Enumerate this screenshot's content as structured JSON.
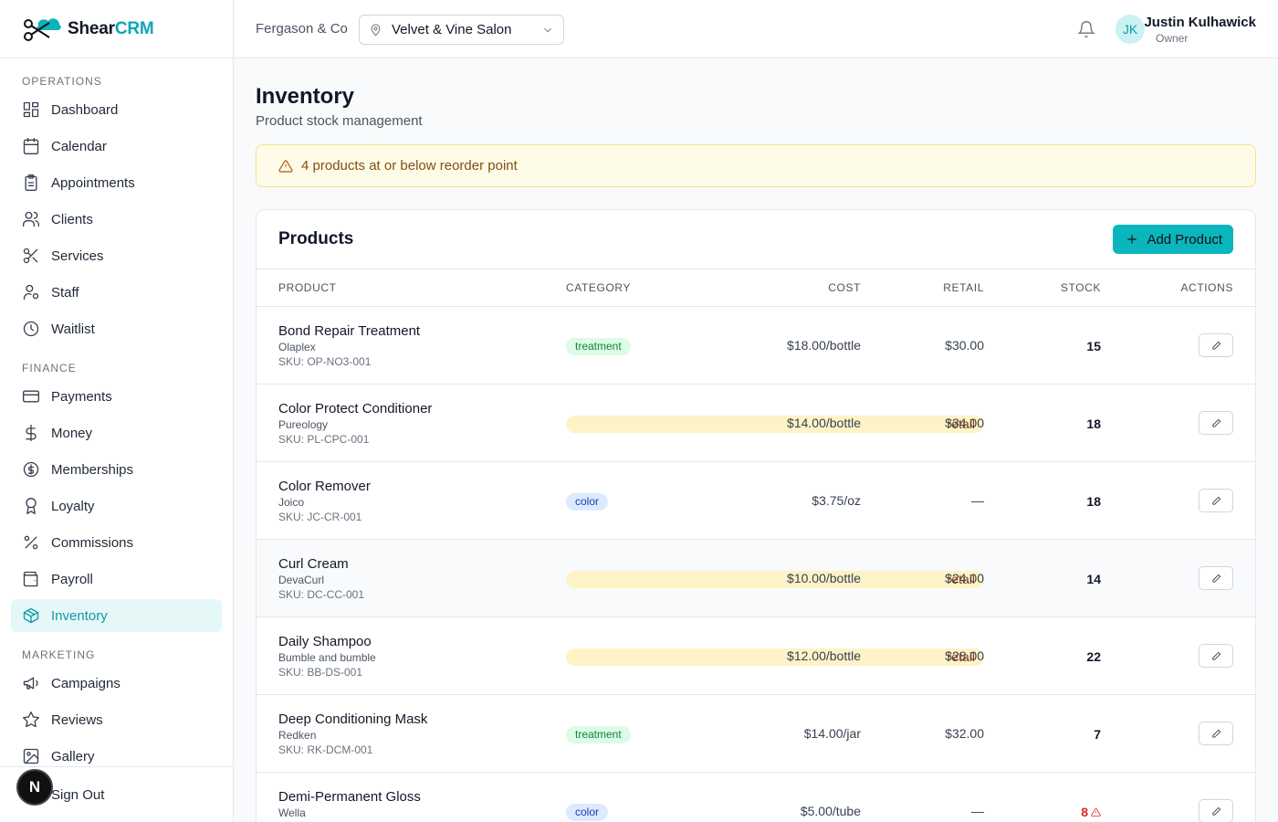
{
  "brand": {
    "name_part1": "Shear",
    "name_part2": "CRM",
    "accent_color": "#0ab5bd"
  },
  "sidebar": {
    "sections": [
      {
        "label": "OPERATIONS",
        "items": [
          {
            "label": "Dashboard",
            "icon": "dashboard-icon"
          },
          {
            "label": "Calendar",
            "icon": "calendar-icon"
          },
          {
            "label": "Appointments",
            "icon": "clipboard-icon"
          },
          {
            "label": "Clients",
            "icon": "users-icon"
          },
          {
            "label": "Services",
            "icon": "scissors-icon"
          },
          {
            "label": "Staff",
            "icon": "user-cog-icon"
          },
          {
            "label": "Waitlist",
            "icon": "clock-icon"
          }
        ]
      },
      {
        "label": "FINANCE",
        "items": [
          {
            "label": "Payments",
            "icon": "credit-card-icon"
          },
          {
            "label": "Money",
            "icon": "dollar-icon"
          },
          {
            "label": "Memberships",
            "icon": "dollar-circle-icon"
          },
          {
            "label": "Loyalty",
            "icon": "award-icon"
          },
          {
            "label": "Commissions",
            "icon": "percent-icon"
          },
          {
            "label": "Payroll",
            "icon": "wallet-icon"
          },
          {
            "label": "Inventory",
            "icon": "package-icon",
            "active": true
          }
        ]
      },
      {
        "label": "MARKETING",
        "items": [
          {
            "label": "Campaigns",
            "icon": "megaphone-icon"
          },
          {
            "label": "Reviews",
            "icon": "star-icon"
          },
          {
            "label": "Gallery",
            "icon": "image-icon"
          }
        ]
      }
    ],
    "sign_out": "Sign Out",
    "dev_badge": "N"
  },
  "header": {
    "org": "Fergason & Co",
    "location": "Velvet & Vine Salon",
    "user": {
      "initials": "JK",
      "name": "Justin Kulhawick",
      "role": "Owner"
    }
  },
  "page": {
    "title": "Inventory",
    "subtitle": "Product stock management",
    "alert": "4 products at or below reorder point"
  },
  "products": {
    "title": "Products",
    "add_label": "Add Product",
    "columns": {
      "product": "PRODUCT",
      "category": "CATEGORY",
      "cost": "COST",
      "retail": "RETAIL",
      "stock": "STOCK",
      "actions": "ACTIONS"
    },
    "rows": [
      {
        "name": "Bond Repair Treatment",
        "brand": "Olaplex",
        "sku": "SKU: OP-NO3-001",
        "category": "treatment",
        "cost": "$18.00/bottle",
        "retail": "$30.00",
        "stock": "15",
        "low": false
      },
      {
        "name": "Color Protect Conditioner",
        "brand": "Pureology",
        "sku": "SKU: PL-CPC-001",
        "category": "retail",
        "cost": "$14.00/bottle",
        "retail": "$34.00",
        "stock": "18",
        "low": false
      },
      {
        "name": "Color Remover",
        "brand": "Joico",
        "sku": "SKU: JC-CR-001",
        "category": "color",
        "cost": "$3.75/oz",
        "retail": "—",
        "stock": "18",
        "low": false
      },
      {
        "name": "Curl Cream",
        "brand": "DevaCurl",
        "sku": "SKU: DC-CC-001",
        "category": "retail",
        "cost": "$10.00/bottle",
        "retail": "$24.00",
        "stock": "14",
        "low": false,
        "highlight": true
      },
      {
        "name": "Daily Shampoo",
        "brand": "Bumble and bumble",
        "sku": "SKU: BB-DS-001",
        "category": "retail",
        "cost": "$12.00/bottle",
        "retail": "$28.00",
        "stock": "22",
        "low": false
      },
      {
        "name": "Deep Conditioning Mask",
        "brand": "Redken",
        "sku": "SKU: RK-DCM-001",
        "category": "treatment",
        "cost": "$14.00/jar",
        "retail": "$32.00",
        "stock": "7",
        "low": false
      },
      {
        "name": "Demi-Permanent Gloss",
        "brand": "Wella",
        "sku": "",
        "category": "color",
        "cost": "$5.00/tube",
        "retail": "—",
        "stock": "8",
        "low": true
      }
    ]
  }
}
